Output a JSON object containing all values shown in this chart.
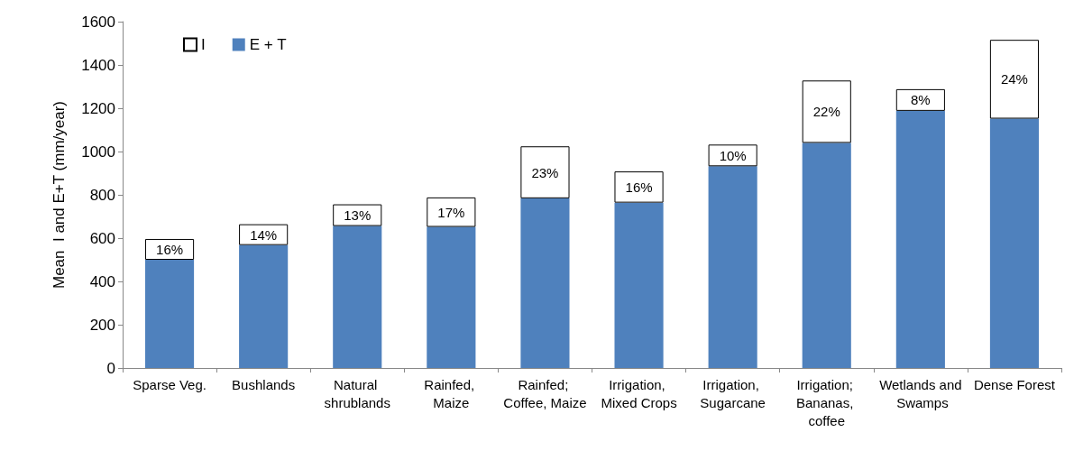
{
  "chart_data": {
    "type": "bar",
    "stacked": true,
    "ylabel": "Mean  I and E+T (mm/year)",
    "categories": [
      "Sparse Veg.",
      "Bushlands",
      "Natural shrublands",
      "Rainfed, Maize",
      "Rainfed; Coffee, Maize",
      "Irrigation, Mixed Crops",
      "Irrigation, Sugarcane",
      "Irrigation; Bananas, coffee",
      "Wetlands and Swamps",
      "Dense Forest"
    ],
    "series": [
      {
        "name": "E + T",
        "color": "#4f81bd",
        "values": [
          500,
          568,
          656,
          652,
          784,
          764,
          932,
          1040,
          1188,
          1152
        ]
      },
      {
        "name": "I",
        "color": "#ffffff",
        "values": [
          96,
          96,
          100,
          136,
          240,
          144,
          100,
          288,
          100,
          364
        ]
      }
    ],
    "annotations": [
      {
        "text": "16%",
        "x": "Sparse Veg.",
        "y": 548
      },
      {
        "text": "14%",
        "x": "Bushlands",
        "y": 616
      },
      {
        "text": "13%",
        "x": "Natural shrublands",
        "y": 706
      },
      {
        "text": "17%",
        "x": "Rainfed, Maize",
        "y": 720
      },
      {
        "text": "23%",
        "x": "Rainfed; Coffee, Maize",
        "y": 904
      },
      {
        "text": "16%",
        "x": "Irrigation, Mixed Crops",
        "y": 836
      },
      {
        "text": "10%",
        "x": "Irrigation, Sugarcane",
        "y": 982
      },
      {
        "text": "22%",
        "x": "Irrigation; Bananas, coffee",
        "y": 1184
      },
      {
        "text": "8%",
        "x": "Wetlands and Swamps",
        "y": 1238
      },
      {
        "text": "24%",
        "x": "Dense Forest",
        "y": 1334
      }
    ],
    "ylim": [
      0,
      1600
    ],
    "yticks": [
      0,
      200,
      400,
      600,
      800,
      1000,
      1200,
      1400,
      1600
    ],
    "grid": false,
    "legend": "top left"
  }
}
